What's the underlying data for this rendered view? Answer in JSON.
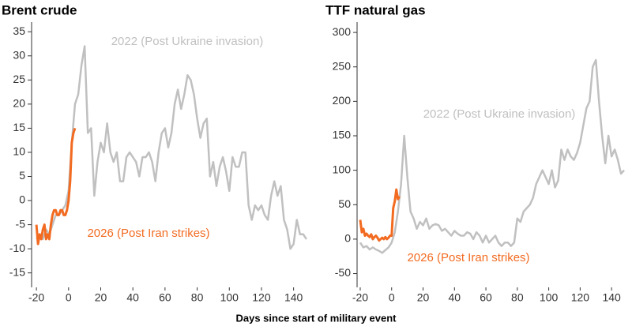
{
  "x_label": "Days since start of military event",
  "chart_data": [
    {
      "type": "line",
      "title": "Brent crude",
      "annotations": [
        "2022 (Post Ukraine invasion)",
        "2026 (Post Iran strikes)"
      ],
      "xlim": [
        -23,
        150
      ],
      "xticks": [
        -20,
        0,
        20,
        40,
        60,
        80,
        100,
        120,
        140
      ],
      "ylim": [
        -18,
        37
      ],
      "yticks": [
        35,
        30,
        25,
        20,
        15,
        10,
        5,
        0,
        -5,
        -10,
        -15
      ],
      "series": [
        {
          "name": "2022 (Post Ukraine invasion)",
          "color": "#c0c0c0",
          "x": [
            -20,
            -18,
            -16,
            -14,
            -12,
            -10,
            -8,
            -6,
            -4,
            -2,
            0,
            2,
            4,
            6,
            8,
            10,
            12,
            14,
            16,
            18,
            20,
            22,
            24,
            26,
            28,
            30,
            32,
            34,
            36,
            38,
            40,
            42,
            44,
            46,
            48,
            50,
            52,
            54,
            56,
            58,
            60,
            62,
            64,
            66,
            68,
            70,
            72,
            74,
            76,
            78,
            80,
            82,
            84,
            86,
            88,
            90,
            92,
            94,
            96,
            98,
            100,
            102,
            104,
            106,
            108,
            110,
            112,
            114,
            116,
            118,
            120,
            122,
            124,
            126,
            128,
            130,
            132,
            134,
            136,
            138,
            140,
            142,
            144,
            146,
            148
          ],
          "values": [
            -8,
            -7,
            -8,
            -6,
            -7,
            -5,
            -3,
            -3,
            -2,
            -1,
            2,
            12,
            20,
            22,
            28,
            32,
            14,
            15,
            1,
            8,
            12,
            10,
            16,
            10,
            8,
            10,
            4,
            4,
            9,
            10,
            9,
            8,
            5,
            9,
            9,
            10,
            8,
            4,
            10,
            14,
            15,
            11,
            14,
            20,
            23,
            19,
            22,
            26,
            25,
            22,
            17,
            13,
            16,
            17,
            5,
            8,
            3,
            7,
            9,
            6,
            2,
            9,
            7,
            7,
            10,
            10,
            -1,
            -4,
            -1,
            -2,
            -1,
            -3,
            -4,
            1,
            4,
            1,
            3,
            -4,
            -6,
            -10,
            -9,
            -4,
            -7,
            -7,
            -8
          ]
        },
        {
          "name": "2026 (Post Iran strikes)",
          "color": "#f26b21",
          "x": [
            -20,
            -19,
            -18,
            -17,
            -16,
            -15,
            -14,
            -13,
            -12,
            -11,
            -10,
            -9,
            -8,
            -7,
            -6,
            -5,
            -4,
            -3,
            -2,
            -1,
            0,
            1,
            2,
            3,
            4
          ],
          "values": [
            -5,
            -9,
            -7,
            -8,
            -6,
            -5,
            -8,
            -7,
            -8,
            -5,
            -3,
            -2,
            -2,
            -3,
            -3,
            -2,
            -2,
            -3,
            -3,
            -2,
            0,
            4,
            12,
            14,
            15
          ]
        }
      ]
    },
    {
      "type": "line",
      "title": "TTF natural gas",
      "annotations": [
        "2022 (Post Ukraine invasion)",
        "2026 (Post Iran strikes)"
      ],
      "xlim": [
        -22,
        152
      ],
      "xticks": [
        -20,
        0,
        20,
        40,
        60,
        80,
        100,
        120,
        140
      ],
      "ylim": [
        -70,
        315
      ],
      "yticks": [
        300,
        250,
        200,
        150,
        100,
        50,
        0,
        -50
      ],
      "series": [
        {
          "name": "2022 (Post Ukraine invasion)",
          "color": "#c0c0c0",
          "x": [
            -20,
            -18,
            -16,
            -14,
            -12,
            -10,
            -8,
            -6,
            -4,
            -2,
            0,
            2,
            4,
            6,
            8,
            10,
            12,
            14,
            16,
            18,
            20,
            22,
            24,
            26,
            28,
            30,
            32,
            34,
            36,
            38,
            40,
            42,
            44,
            46,
            48,
            50,
            52,
            54,
            56,
            58,
            60,
            62,
            64,
            66,
            68,
            70,
            72,
            74,
            76,
            78,
            80,
            82,
            84,
            86,
            88,
            90,
            92,
            94,
            96,
            98,
            100,
            102,
            104,
            106,
            108,
            110,
            112,
            114,
            116,
            118,
            120,
            122,
            124,
            126,
            128,
            130,
            132,
            134,
            136,
            138,
            140,
            142,
            144,
            146,
            148
          ],
          "values": [
            -5,
            -12,
            -10,
            -15,
            -12,
            -15,
            -17,
            -20,
            -16,
            -12,
            -5,
            10,
            40,
            80,
            150,
            90,
            40,
            30,
            15,
            25,
            20,
            30,
            15,
            20,
            22,
            20,
            12,
            15,
            10,
            5,
            12,
            8,
            5,
            5,
            10,
            8,
            0,
            10,
            5,
            -5,
            5,
            -5,
            0,
            5,
            -5,
            -10,
            -5,
            -5,
            -10,
            -5,
            30,
            25,
            40,
            45,
            50,
            60,
            80,
            90,
            100,
            90,
            80,
            100,
            75,
            85,
            130,
            115,
            130,
            120,
            115,
            125,
            140,
            165,
            190,
            200,
            250,
            260,
            200,
            150,
            110,
            150,
            120,
            130,
            115,
            95,
            100
          ]
        },
        {
          "name": "2026 (Post Iran strikes)",
          "color": "#f26b21",
          "x": [
            -20,
            -19,
            -18,
            -17,
            -16,
            -15,
            -14,
            -13,
            -12,
            -11,
            -10,
            -9,
            -8,
            -7,
            -6,
            -5,
            -4,
            -3,
            -2,
            -1,
            0,
            1,
            2,
            3,
            4,
            5
          ],
          "values": [
            28,
            10,
            15,
            5,
            8,
            5,
            3,
            7,
            0,
            3,
            5,
            2,
            -2,
            0,
            2,
            0,
            3,
            0,
            2,
            5,
            5,
            45,
            55,
            72,
            58,
            62
          ]
        }
      ]
    }
  ]
}
